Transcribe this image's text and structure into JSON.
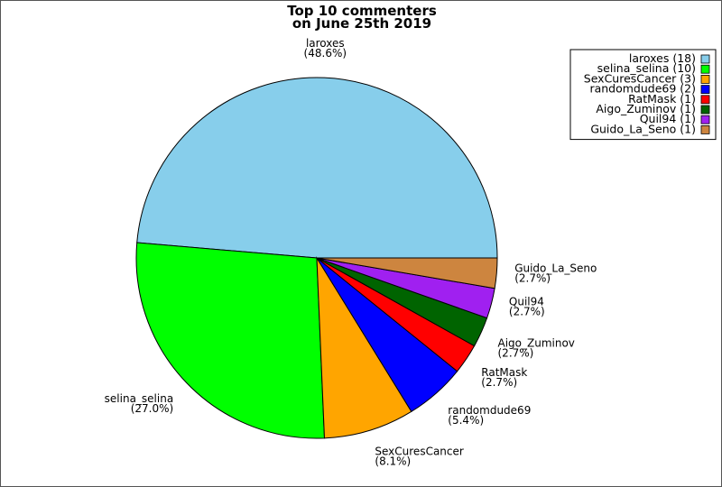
{
  "chart_data": {
    "type": "pie",
    "title_lines": [
      "Top 10 commenters",
      "on June 25th 2019"
    ],
    "slices": [
      {
        "name": "laroxes",
        "value": 18,
        "percent_label": "(48.6%)",
        "legend_label": "laroxes (18)",
        "color": "#87CEEB"
      },
      {
        "name": "selina_selina",
        "value": 10,
        "percent_label": "(27.0%)",
        "legend_label": "selina_selina (10)",
        "color": "#00FF00"
      },
      {
        "name": "SexCuresCancer",
        "value": 3,
        "percent_label": "(8.1%)",
        "legend_label": "SexCuresCancer (3)",
        "color": "#FFA500"
      },
      {
        "name": "randomdude69",
        "value": 2,
        "percent_label": "(5.4%)",
        "legend_label": "randomdude69 (2)",
        "color": "#0000FF"
      },
      {
        "name": "RatMask",
        "value": 1,
        "percent_label": "(2.7%)",
        "legend_label": "RatMask (1)",
        "color": "#FF0000"
      },
      {
        "name": "Aigo_Zuminov",
        "value": 1,
        "percent_label": "(2.7%)",
        "legend_label": "Aigo_Zuminov (1)",
        "color": "#006400"
      },
      {
        "name": "Quil94",
        "value": 1,
        "percent_label": "(2.7%)",
        "legend_label": "Quil94 (1)",
        "color": "#A020F0"
      },
      {
        "name": "Guido_La_Seno",
        "value": 1,
        "percent_label": "(2.7%)",
        "legend_label": "Guido_La_Seno (1)",
        "color": "#CD853F"
      }
    ],
    "legend_position": "top-right"
  }
}
